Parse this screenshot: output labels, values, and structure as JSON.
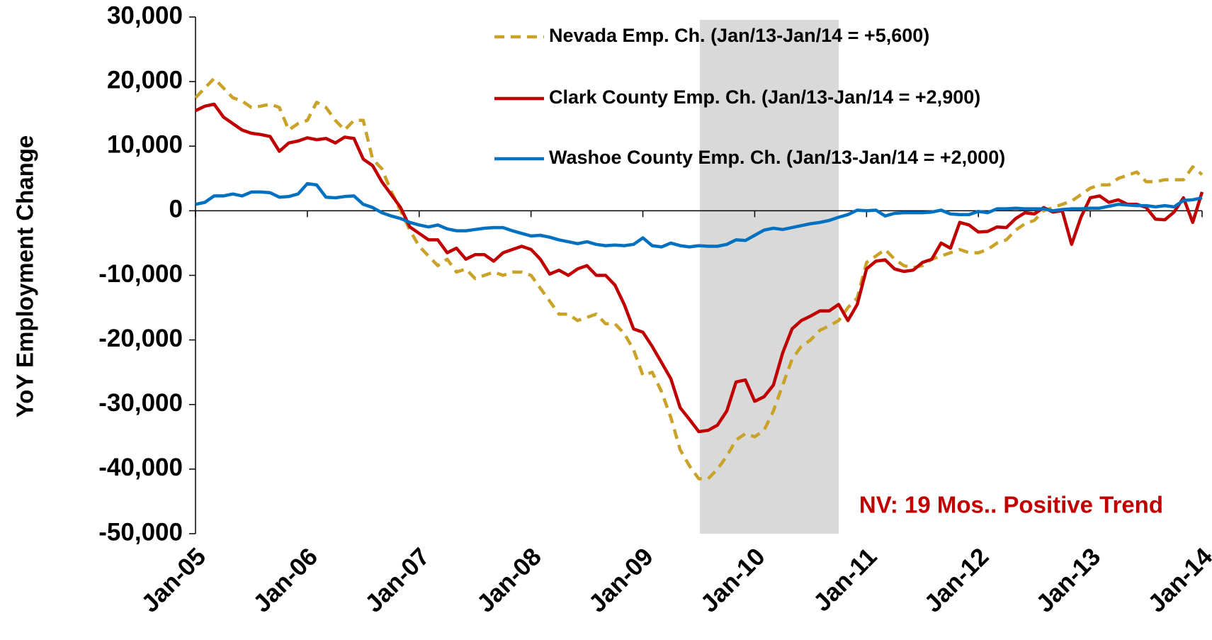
{
  "chart_data": {
    "type": "line",
    "y_label": "YoY Employment Change",
    "annotation": "NV: 19 Mos.. Positive Trend",
    "categories": [
      "Jan-05",
      null,
      null,
      null,
      null,
      null,
      null,
      null,
      null,
      null,
      null,
      null,
      "Jan-06",
      null,
      null,
      null,
      null,
      null,
      null,
      null,
      null,
      null,
      null,
      null,
      "Jan-07",
      null,
      null,
      null,
      null,
      null,
      null,
      null,
      null,
      null,
      null,
      null,
      "Jan-08",
      null,
      null,
      null,
      null,
      null,
      null,
      null,
      null,
      null,
      null,
      null,
      "Jan-09",
      null,
      null,
      null,
      null,
      null,
      null,
      null,
      null,
      null,
      null,
      null,
      "Jan-10",
      null,
      null,
      null,
      null,
      null,
      null,
      null,
      null,
      null,
      null,
      null,
      "Jan-11",
      null,
      null,
      null,
      null,
      null,
      null,
      null,
      null,
      null,
      null,
      null,
      "Jan-12",
      null,
      null,
      null,
      null,
      null,
      null,
      null,
      null,
      null,
      null,
      null,
      "Jan-13",
      null,
      null,
      null,
      null,
      null,
      null,
      null,
      null,
      null,
      null,
      null,
      "Jan-14"
    ],
    "series": [
      {
        "name": "Nevada Emp. Ch. (Jan/13-Jan/14 = +5,600)",
        "color": "#c9a227",
        "linestyle": "dashed",
        "values": [
          17500,
          19000,
          20500,
          19000,
          17500,
          17000,
          16000,
          16200,
          16500,
          16000,
          12500,
          13500,
          14000,
          16800,
          16000,
          14000,
          12500,
          14000,
          14000,
          8000,
          6500,
          3000,
          0,
          -3000,
          -5500,
          -7000,
          -8500,
          -7500,
          -9500,
          -9000,
          -10500,
          -10000,
          -9500,
          -10000,
          -9500,
          -9500,
          -10000,
          -12000,
          -14000,
          -16000,
          -16000,
          -17000,
          -16500,
          -16000,
          -17500,
          -17500,
          -19000,
          -21500,
          -25500,
          -25000,
          -28000,
          -32000,
          -37000,
          -39500,
          -41500,
          -41500,
          -40000,
          -38000,
          -35500,
          -34500,
          -35000,
          -34000,
          -31000,
          -27000,
          -23000,
          -21000,
          -20000,
          -18500,
          -17800,
          -17000,
          -15000,
          -13500,
          -8000,
          -7000,
          -6000,
          -7500,
          -8500,
          -8800,
          -8500,
          -7500,
          -7000,
          -6500,
          -6000,
          -6500,
          -6500,
          -6000,
          -5000,
          -4500,
          -3000,
          -2000,
          -1500,
          0,
          500,
          1000,
          1500,
          2500,
          3500,
          4000,
          4000,
          5000,
          5500,
          6000,
          4500,
          4500,
          4800,
          4800,
          4800,
          6800,
          5600
        ]
      },
      {
        "name": "Clark County Emp. Ch. (Jan/13-Jan/14 = +2,900)",
        "color": "#c00000",
        "linestyle": "solid",
        "values": [
          15500,
          16200,
          16500,
          14500,
          13500,
          12500,
          12000,
          11800,
          11500,
          9200,
          10500,
          10800,
          11300,
          11000,
          11200,
          10500,
          11400,
          11200,
          8000,
          7000,
          4500,
          2500,
          500,
          -2500,
          -3500,
          -4500,
          -4500,
          -6500,
          -5800,
          -7500,
          -6800,
          -6800,
          -7800,
          -6500,
          -6000,
          -5500,
          -6000,
          -7500,
          -9800,
          -9200,
          -10000,
          -9000,
          -8500,
          -10000,
          -10000,
          -11500,
          -14500,
          -18300,
          -18800,
          -21000,
          -23500,
          -26000,
          -30500,
          -32300,
          -34200,
          -34000,
          -33200,
          -31000,
          -26500,
          -26200,
          -29500,
          -28800,
          -27000,
          -22000,
          -18300,
          -17000,
          -16300,
          -15500,
          -15500,
          -14500,
          -17000,
          -14500,
          -9000,
          -7800,
          -7600,
          -9000,
          -9400,
          -9200,
          -8000,
          -7500,
          -5000,
          -5800,
          -1800,
          -2200,
          -3300,
          -3200,
          -2500,
          -2600,
          -1200,
          -300,
          -500,
          500,
          -200,
          0,
          -5200,
          -1000,
          2000,
          2300,
          1300,
          1700,
          1000,
          1000,
          500,
          -1300,
          -1400,
          -200,
          2000,
          -1800,
          2900
        ]
      },
      {
        "name": "Washoe County Emp. Ch. (Jan/13-Jan/14 = +2,000)",
        "color": "#0070c0",
        "linestyle": "solid",
        "values": [
          1000,
          1300,
          2300,
          2300,
          2600,
          2300,
          2900,
          2900,
          2800,
          2100,
          2200,
          2600,
          4200,
          4000,
          2100,
          2000,
          2200,
          2300,
          1000,
          500,
          -300,
          -800,
          -1200,
          -1800,
          -2200,
          -2500,
          -2200,
          -2800,
          -3100,
          -3100,
          -2900,
          -2700,
          -2600,
          -2600,
          -3100,
          -3500,
          -3900,
          -3800,
          -4100,
          -4500,
          -4800,
          -5100,
          -4800,
          -5200,
          -5400,
          -5300,
          -5400,
          -5200,
          -4200,
          -5400,
          -5600,
          -5000,
          -5400,
          -5600,
          -5400,
          -5500,
          -5500,
          -5200,
          -4500,
          -4600,
          -3800,
          -3000,
          -2700,
          -2900,
          -2600,
          -2300,
          -2000,
          -1800,
          -1500,
          -1000,
          -600,
          100,
          0,
          100,
          -800,
          -400,
          -300,
          -300,
          -300,
          -200,
          100,
          -500,
          -600,
          -600,
          -100,
          -300,
          300,
          300,
          400,
          300,
          300,
          300,
          0,
          200,
          300,
          300,
          400,
          400,
          700,
          1000,
          900,
          800,
          800,
          600,
          800,
          600,
          1600,
          1700,
          2000
        ]
      }
    ],
    "ylim": [
      -50000,
      30000
    ],
    "yticks": [
      {
        "value": -50000,
        "label": "-50,000"
      },
      {
        "value": -40000,
        "label": "-40,000"
      },
      {
        "value": -30000,
        "label": "-30,000"
      },
      {
        "value": -20000,
        "label": "-20,000"
      },
      {
        "value": -10000,
        "label": "-10,000"
      },
      0,
      {
        "value": 10000,
        "label": "10,000"
      },
      {
        "value": 20000,
        "label": "20,000"
      },
      {
        "value": 30000,
        "label": "30,000"
      }
    ],
    "grid": false,
    "legend": "top"
  }
}
